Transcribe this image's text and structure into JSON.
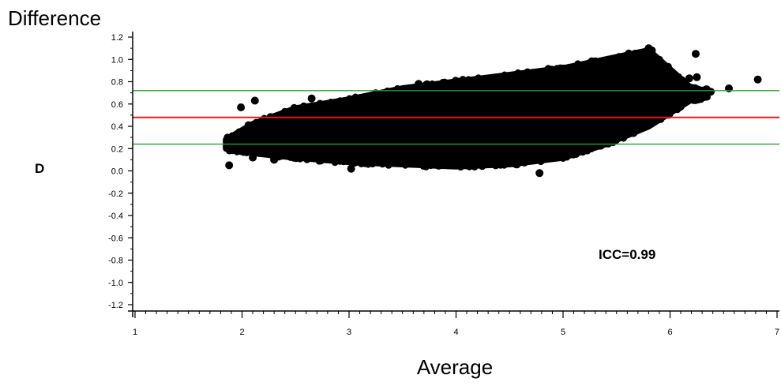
{
  "chart_data": {
    "type": "scatter",
    "title": "Difference",
    "ylabel": "D",
    "xlabel": "Average",
    "annotation": "ICC=0.99",
    "xlim": [
      1,
      7
    ],
    "ylim": [
      -1.2,
      1.2
    ],
    "x_ticks": [
      "1",
      "2",
      "3",
      "4",
      "5",
      "6",
      "7"
    ],
    "y_ticks": [
      "1.2",
      "1.0",
      "0.8",
      "0.6",
      "0.4",
      "0.2",
      "0.0",
      "-0.2",
      "-0.4",
      "-0.6",
      "-0.8",
      "-1.0",
      "-1.2"
    ],
    "grid": false,
    "reference_lines": [
      {
        "role": "mean",
        "y": 0.48,
        "color": "#e8191b"
      },
      {
        "role": "upper-limit",
        "y": 0.72,
        "color": "#2e9b3a"
      },
      {
        "role": "lower-limit",
        "y": 0.24,
        "color": "#2e9b3a"
      }
    ],
    "point_color": "#000000",
    "density_band": [
      [
        1.85,
        0.2,
        0.28
      ],
      [
        2.1,
        0.16,
        0.42
      ],
      [
        2.5,
        0.12,
        0.56
      ],
      [
        3.0,
        0.08,
        0.64
      ],
      [
        3.5,
        0.06,
        0.74
      ],
      [
        4.0,
        0.04,
        0.8
      ],
      [
        4.5,
        0.06,
        0.86
      ],
      [
        5.0,
        0.12,
        0.92
      ],
      [
        5.4,
        0.24,
        1.0
      ],
      [
        5.8,
        0.4,
        1.08
      ],
      [
        6.2,
        0.64,
        0.74
      ],
      [
        6.35,
        0.66,
        0.72
      ]
    ],
    "points": [
      [
        1.87,
        0.27
      ],
      [
        1.88,
        0.05
      ],
      [
        1.95,
        0.27
      ],
      [
        1.99,
        0.57
      ],
      [
        2.06,
        0.41
      ],
      [
        2.12,
        0.63
      ],
      [
        2.1,
        0.12
      ],
      [
        2.3,
        0.1
      ],
      [
        2.65,
        0.65
      ],
      [
        3.02,
        0.02
      ],
      [
        3.55,
        0.72
      ],
      [
        3.65,
        0.78
      ],
      [
        4.1,
        0.05
      ],
      [
        4.78,
        -0.02
      ],
      [
        5.25,
        0.8
      ],
      [
        5.66,
        0.34
      ],
      [
        5.72,
        0.95
      ],
      [
        5.8,
        1.1
      ],
      [
        5.83,
        1.08
      ],
      [
        5.85,
        0.99
      ],
      [
        5.88,
        0.86
      ],
      [
        5.94,
        0.89
      ],
      [
        6.0,
        0.9
      ],
      [
        6.05,
        0.82
      ],
      [
        6.12,
        0.8
      ],
      [
        6.18,
        0.83
      ],
      [
        6.24,
        1.05
      ],
      [
        6.25,
        0.84
      ],
      [
        6.38,
        0.71
      ],
      [
        6.55,
        0.74
      ],
      [
        6.82,
        0.82
      ]
    ]
  }
}
